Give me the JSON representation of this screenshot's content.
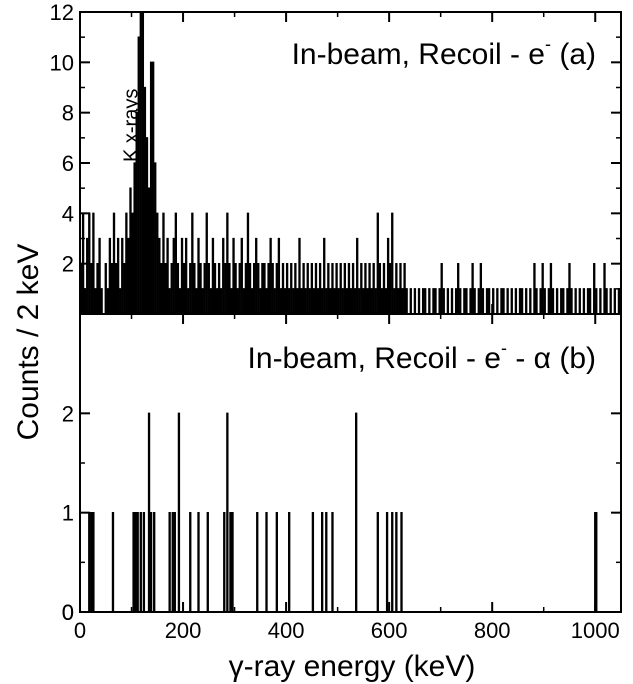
{
  "chart_data": {
    "type": "bar",
    "ylabel": "Counts / 2 keV",
    "xlabel": "γ-ray energy (keV)",
    "xlim": [
      0,
      1050
    ],
    "x_ticks": [
      "0",
      "200",
      "400",
      "600",
      "800",
      "1000"
    ],
    "colors": {
      "line": "#000000",
      "background": "#ffffff"
    },
    "panels": [
      {
        "id": "a",
        "label_main": "In-beam, Recoil - e",
        "label_sup": "-",
        "label_greek": "",
        "label_tail": " (a)",
        "annotation": "K x-rays",
        "ylim": [
          0,
          12
        ],
        "y_ticks": [
          "0",
          "2",
          "4",
          "6",
          "8",
          "10",
          "12"
        ],
        "bins": [
          [
            2,
            2
          ],
          [
            6,
            4
          ],
          [
            10,
            1
          ],
          [
            14,
            3
          ],
          [
            18,
            4
          ],
          [
            22,
            2
          ],
          [
            26,
            4
          ],
          [
            30,
            1
          ],
          [
            34,
            2
          ],
          [
            38,
            3
          ],
          [
            42,
            1
          ],
          [
            46,
            0
          ],
          [
            50,
            2
          ],
          [
            54,
            1
          ],
          [
            58,
            3
          ],
          [
            62,
            2
          ],
          [
            66,
            4
          ],
          [
            70,
            2
          ],
          [
            74,
            3
          ],
          [
            78,
            1
          ],
          [
            82,
            3
          ],
          [
            86,
            2
          ],
          [
            90,
            4
          ],
          [
            94,
            3
          ],
          [
            98,
            5
          ],
          [
            102,
            4
          ],
          [
            106,
            6
          ],
          [
            110,
            8
          ],
          [
            114,
            11
          ],
          [
            118,
            12
          ],
          [
            122,
            12
          ],
          [
            126,
            9
          ],
          [
            130,
            7
          ],
          [
            134,
            5
          ],
          [
            138,
            10
          ],
          [
            142,
            10
          ],
          [
            146,
            6
          ],
          [
            150,
            4
          ],
          [
            154,
            3
          ],
          [
            158,
            2
          ],
          [
            162,
            4
          ],
          [
            166,
            2
          ],
          [
            170,
            3
          ],
          [
            174,
            1
          ],
          [
            178,
            2
          ],
          [
            182,
            3
          ],
          [
            186,
            4
          ],
          [
            190,
            2
          ],
          [
            194,
            1
          ],
          [
            198,
            3
          ],
          [
            202,
            2
          ],
          [
            206,
            3
          ],
          [
            210,
            1
          ],
          [
            214,
            2
          ],
          [
            218,
            4
          ],
          [
            222,
            2
          ],
          [
            226,
            1
          ],
          [
            230,
            3
          ],
          [
            234,
            2
          ],
          [
            238,
            1
          ],
          [
            242,
            2
          ],
          [
            246,
            4
          ],
          [
            250,
            2
          ],
          [
            254,
            1
          ],
          [
            258,
            3
          ],
          [
            262,
            2
          ],
          [
            266,
            1
          ],
          [
            270,
            2
          ],
          [
            274,
            1
          ],
          [
            278,
            3
          ],
          [
            282,
            2
          ],
          [
            286,
            4
          ],
          [
            290,
            2
          ],
          [
            294,
            1
          ],
          [
            298,
            3
          ],
          [
            302,
            2
          ],
          [
            306,
            1
          ],
          [
            310,
            2
          ],
          [
            314,
            3
          ],
          [
            318,
            1
          ],
          [
            322,
            2
          ],
          [
            326,
            4
          ],
          [
            330,
            2
          ],
          [
            334,
            1
          ],
          [
            338,
            2
          ],
          [
            342,
            3
          ],
          [
            346,
            2
          ],
          [
            350,
            1
          ],
          [
            354,
            2
          ],
          [
            358,
            2
          ],
          [
            362,
            1
          ],
          [
            366,
            2
          ],
          [
            370,
            3
          ],
          [
            374,
            2
          ],
          [
            378,
            1
          ],
          [
            382,
            2
          ],
          [
            386,
            3
          ],
          [
            390,
            1
          ],
          [
            394,
            2
          ],
          [
            398,
            1
          ],
          [
            402,
            2
          ],
          [
            406,
            1
          ],
          [
            410,
            2
          ],
          [
            414,
            1
          ],
          [
            418,
            2
          ],
          [
            422,
            1
          ],
          [
            426,
            3
          ],
          [
            430,
            1
          ],
          [
            434,
            2
          ],
          [
            438,
            1
          ],
          [
            442,
            2
          ],
          [
            446,
            1
          ],
          [
            450,
            2
          ],
          [
            454,
            1
          ],
          [
            458,
            2
          ],
          [
            462,
            1
          ],
          [
            466,
            2
          ],
          [
            470,
            1
          ],
          [
            474,
            3
          ],
          [
            478,
            1
          ],
          [
            482,
            2
          ],
          [
            486,
            1
          ],
          [
            490,
            2
          ],
          [
            494,
            1
          ],
          [
            498,
            2
          ],
          [
            502,
            1
          ],
          [
            506,
            2
          ],
          [
            510,
            1
          ],
          [
            514,
            2
          ],
          [
            518,
            1
          ],
          [
            522,
            2
          ],
          [
            526,
            1
          ],
          [
            530,
            2
          ],
          [
            534,
            1
          ],
          [
            538,
            3
          ],
          [
            542,
            1
          ],
          [
            546,
            2
          ],
          [
            550,
            1
          ],
          [
            554,
            2
          ],
          [
            558,
            1
          ],
          [
            562,
            2
          ],
          [
            566,
            1
          ],
          [
            570,
            2
          ],
          [
            574,
            1
          ],
          [
            578,
            4
          ],
          [
            582,
            2
          ],
          [
            586,
            1
          ],
          [
            590,
            2
          ],
          [
            594,
            1
          ],
          [
            598,
            3
          ],
          [
            602,
            2
          ],
          [
            606,
            4
          ],
          [
            610,
            1
          ],
          [
            614,
            2
          ],
          [
            618,
            1
          ],
          [
            622,
            2
          ],
          [
            626,
            1
          ],
          [
            630,
            2
          ],
          [
            634,
            1
          ],
          [
            638,
            0
          ],
          [
            642,
            1
          ],
          [
            646,
            0
          ],
          [
            650,
            1
          ],
          [
            654,
            0
          ],
          [
            658,
            1
          ],
          [
            662,
            0
          ],
          [
            666,
            1
          ],
          [
            670,
            1
          ],
          [
            674,
            0
          ],
          [
            678,
            1
          ],
          [
            682,
            0
          ],
          [
            686,
            1
          ],
          [
            690,
            1
          ],
          [
            694,
            0
          ],
          [
            698,
            1
          ],
          [
            702,
            2
          ],
          [
            706,
            1
          ],
          [
            710,
            0
          ],
          [
            714,
            1
          ],
          [
            718,
            0
          ],
          [
            722,
            1
          ],
          [
            726,
            0
          ],
          [
            730,
            1
          ],
          [
            734,
            2
          ],
          [
            738,
            1
          ],
          [
            742,
            0
          ],
          [
            746,
            1
          ],
          [
            750,
            1
          ],
          [
            754,
            0
          ],
          [
            758,
            1
          ],
          [
            762,
            2
          ],
          [
            766,
            1
          ],
          [
            770,
            0
          ],
          [
            774,
            1
          ],
          [
            778,
            2
          ],
          [
            782,
            1
          ],
          [
            786,
            0
          ],
          [
            790,
            1
          ],
          [
            794,
            1
          ],
          [
            798,
            0
          ],
          [
            802,
            1
          ],
          [
            806,
            0
          ],
          [
            810,
            1
          ],
          [
            814,
            0
          ],
          [
            818,
            1
          ],
          [
            822,
            1
          ],
          [
            826,
            0
          ],
          [
            830,
            1
          ],
          [
            834,
            0
          ],
          [
            838,
            1
          ],
          [
            842,
            0
          ],
          [
            846,
            1
          ],
          [
            850,
            0
          ],
          [
            854,
            1
          ],
          [
            858,
            1
          ],
          [
            862,
            0
          ],
          [
            866,
            1
          ],
          [
            870,
            0
          ],
          [
            874,
            1
          ],
          [
            878,
            0
          ],
          [
            882,
            2
          ],
          [
            886,
            1
          ],
          [
            890,
            0
          ],
          [
            894,
            1
          ],
          [
            898,
            2
          ],
          [
            902,
            1
          ],
          [
            906,
            0
          ],
          [
            910,
            1
          ],
          [
            914,
            2
          ],
          [
            918,
            1
          ],
          [
            922,
            0
          ],
          [
            926,
            1
          ],
          [
            930,
            0
          ],
          [
            934,
            1
          ],
          [
            938,
            1
          ],
          [
            942,
            0
          ],
          [
            946,
            1
          ],
          [
            950,
            2
          ],
          [
            954,
            1
          ],
          [
            958,
            0
          ],
          [
            962,
            1
          ],
          [
            966,
            0
          ],
          [
            970,
            1
          ],
          [
            974,
            0
          ],
          [
            978,
            1
          ],
          [
            982,
            0
          ],
          [
            986,
            1
          ],
          [
            990,
            1
          ],
          [
            994,
            0
          ],
          [
            998,
            2
          ],
          [
            1002,
            1
          ],
          [
            1006,
            0
          ],
          [
            1010,
            1
          ],
          [
            1014,
            0
          ],
          [
            1018,
            2
          ],
          [
            1022,
            1
          ],
          [
            1026,
            0
          ],
          [
            1030,
            1
          ],
          [
            1034,
            0
          ],
          [
            1038,
            1
          ],
          [
            1042,
            0
          ],
          [
            1046,
            1
          ]
        ]
      },
      {
        "id": "b",
        "label_main": "In-beam, Recoil - e",
        "label_sup": "-",
        "label_greek": " - α",
        "label_tail": " (b)",
        "annotation": "",
        "ylim": [
          0,
          3
        ],
        "y_ticks": [
          "0",
          "1",
          "2"
        ],
        "bins": [
          [
            18,
            1
          ],
          [
            22,
            1
          ],
          [
            26,
            1
          ],
          [
            64,
            1
          ],
          [
            104,
            1
          ],
          [
            108,
            1
          ],
          [
            112,
            1
          ],
          [
            118,
            1
          ],
          [
            124,
            1
          ],
          [
            134,
            2
          ],
          [
            138,
            1
          ],
          [
            144,
            1
          ],
          [
            174,
            1
          ],
          [
            180,
            1
          ],
          [
            184,
            1
          ],
          [
            192,
            2
          ],
          [
            214,
            1
          ],
          [
            230,
            1
          ],
          [
            248,
            1
          ],
          [
            280,
            1
          ],
          [
            286,
            2
          ],
          [
            292,
            1
          ],
          [
            296,
            1
          ],
          [
            344,
            1
          ],
          [
            362,
            1
          ],
          [
            382,
            1
          ],
          [
            406,
            1
          ],
          [
            452,
            1
          ],
          [
            470,
            1
          ],
          [
            478,
            1
          ],
          [
            490,
            1
          ],
          [
            536,
            2
          ],
          [
            578,
            1
          ],
          [
            596,
            1
          ],
          [
            606,
            1
          ],
          [
            614,
            1
          ],
          [
            624,
            1
          ],
          [
            1000,
            1
          ],
          [
            1002,
            1
          ]
        ]
      }
    ]
  }
}
